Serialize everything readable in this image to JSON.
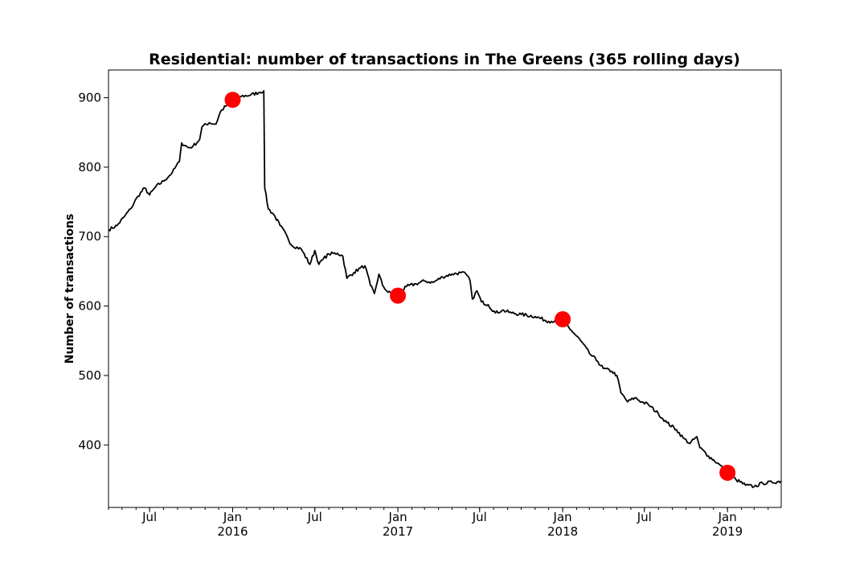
{
  "chart_data": {
    "type": "line",
    "title": "Residential: number of transactions in The Greens (365 rolling days)",
    "xlabel": "",
    "ylabel": "Number of transactions",
    "x_range": [
      "2015-04-01",
      "2019-04-30"
    ],
    "ylim": [
      310,
      940
    ],
    "y_ticks": [
      400,
      500,
      600,
      700,
      800,
      900
    ],
    "grid": false,
    "line_color": "#000000",
    "marker_color": "#ff0000",
    "x_ticks": [
      {
        "date": "2015-07-01",
        "label": "Jul",
        "sublabel": ""
      },
      {
        "date": "2016-01-01",
        "label": "Jan",
        "sublabel": "2016"
      },
      {
        "date": "2016-07-01",
        "label": "Jul",
        "sublabel": ""
      },
      {
        "date": "2017-01-01",
        "label": "Jan",
        "sublabel": "2017"
      },
      {
        "date": "2017-07-01",
        "label": "Jul",
        "sublabel": ""
      },
      {
        "date": "2018-01-01",
        "label": "Jan",
        "sublabel": "2018"
      },
      {
        "date": "2018-07-01",
        "label": "Jul",
        "sublabel": ""
      },
      {
        "date": "2019-01-01",
        "label": "Jan",
        "sublabel": "2019"
      }
    ],
    "series": [
      {
        "points": [
          [
            "2015-04-01",
            710
          ],
          [
            "2015-04-20",
            716
          ],
          [
            "2015-05-05",
            728
          ],
          [
            "2015-05-20",
            740
          ],
          [
            "2015-06-05",
            758
          ],
          [
            "2015-06-20",
            770
          ],
          [
            "2015-07-01",
            760
          ],
          [
            "2015-07-15",
            772
          ],
          [
            "2015-08-01",
            780
          ],
          [
            "2015-08-20",
            792
          ],
          [
            "2015-09-05",
            808
          ],
          [
            "2015-09-10",
            835
          ],
          [
            "2015-09-25",
            828
          ],
          [
            "2015-10-05",
            830
          ],
          [
            "2015-10-20",
            840
          ],
          [
            "2015-10-25",
            858
          ],
          [
            "2015-11-10",
            864
          ],
          [
            "2015-11-25",
            862
          ],
          [
            "2015-12-05",
            880
          ],
          [
            "2015-12-20",
            890
          ],
          [
            "2016-01-01",
            898
          ],
          [
            "2016-01-20",
            902
          ],
          [
            "2016-02-10",
            904
          ],
          [
            "2016-03-01",
            908
          ],
          [
            "2016-03-10",
            910
          ],
          [
            "2016-03-12",
            770
          ],
          [
            "2016-03-20",
            740
          ],
          [
            "2016-04-01",
            732
          ],
          [
            "2016-04-15",
            716
          ],
          [
            "2016-05-01",
            700
          ],
          [
            "2016-05-10",
            688
          ],
          [
            "2016-06-01",
            682
          ],
          [
            "2016-06-20",
            660
          ],
          [
            "2016-07-01",
            680
          ],
          [
            "2016-07-10",
            660
          ],
          [
            "2016-07-20",
            668
          ],
          [
            "2016-08-01",
            675
          ],
          [
            "2016-08-20",
            676
          ],
          [
            "2016-09-01",
            672
          ],
          [
            "2016-09-10",
            640
          ],
          [
            "2016-09-25",
            648
          ],
          [
            "2016-10-10",
            655
          ],
          [
            "2016-10-20",
            658
          ],
          [
            "2016-11-01",
            630
          ],
          [
            "2016-11-10",
            618
          ],
          [
            "2016-11-20",
            646
          ],
          [
            "2016-11-28",
            630
          ],
          [
            "2016-12-10",
            620
          ],
          [
            "2017-01-01",
            615
          ],
          [
            "2017-01-20",
            628
          ],
          [
            "2017-02-10",
            632
          ],
          [
            "2017-03-01",
            636
          ],
          [
            "2017-03-20",
            634
          ],
          [
            "2017-04-10",
            642
          ],
          [
            "2017-05-01",
            646
          ],
          [
            "2017-05-20",
            648
          ],
          [
            "2017-06-01",
            646
          ],
          [
            "2017-06-10",
            636
          ],
          [
            "2017-06-15",
            610
          ],
          [
            "2017-06-25",
            622
          ],
          [
            "2017-07-05",
            606
          ],
          [
            "2017-07-20",
            602
          ],
          [
            "2017-08-05",
            590
          ],
          [
            "2017-08-20",
            594
          ],
          [
            "2017-09-10",
            590
          ],
          [
            "2017-10-01",
            588
          ],
          [
            "2017-11-01",
            585
          ],
          [
            "2017-12-01",
            578
          ],
          [
            "2018-01-01",
            580
          ],
          [
            "2018-01-20",
            565
          ],
          [
            "2018-02-10",
            550
          ],
          [
            "2018-03-01",
            532
          ],
          [
            "2018-03-20",
            520
          ],
          [
            "2018-04-01",
            510
          ],
          [
            "2018-04-20",
            506
          ],
          [
            "2018-05-01",
            500
          ],
          [
            "2018-05-10",
            475
          ],
          [
            "2018-05-25",
            462
          ],
          [
            "2018-06-10",
            468
          ],
          [
            "2018-06-25",
            462
          ],
          [
            "2018-07-10",
            458
          ],
          [
            "2018-08-01",
            445
          ],
          [
            "2018-08-20",
            432
          ],
          [
            "2018-09-10",
            422
          ],
          [
            "2018-09-25",
            410
          ],
          [
            "2018-10-10",
            402
          ],
          [
            "2018-10-25",
            412
          ],
          [
            "2018-11-01",
            396
          ],
          [
            "2018-11-20",
            384
          ],
          [
            "2018-12-10",
            374
          ],
          [
            "2019-01-01",
            360
          ],
          [
            "2019-01-20",
            350
          ],
          [
            "2019-02-10",
            342
          ],
          [
            "2019-03-01",
            340
          ],
          [
            "2019-03-20",
            345
          ],
          [
            "2019-04-10",
            346
          ],
          [
            "2019-04-30",
            348
          ]
        ]
      }
    ],
    "highlight_points": [
      [
        "2016-01-01",
        897
      ],
      [
        "2017-01-01",
        615
      ],
      [
        "2018-01-01",
        581
      ],
      [
        "2019-01-01",
        360
      ]
    ]
  }
}
